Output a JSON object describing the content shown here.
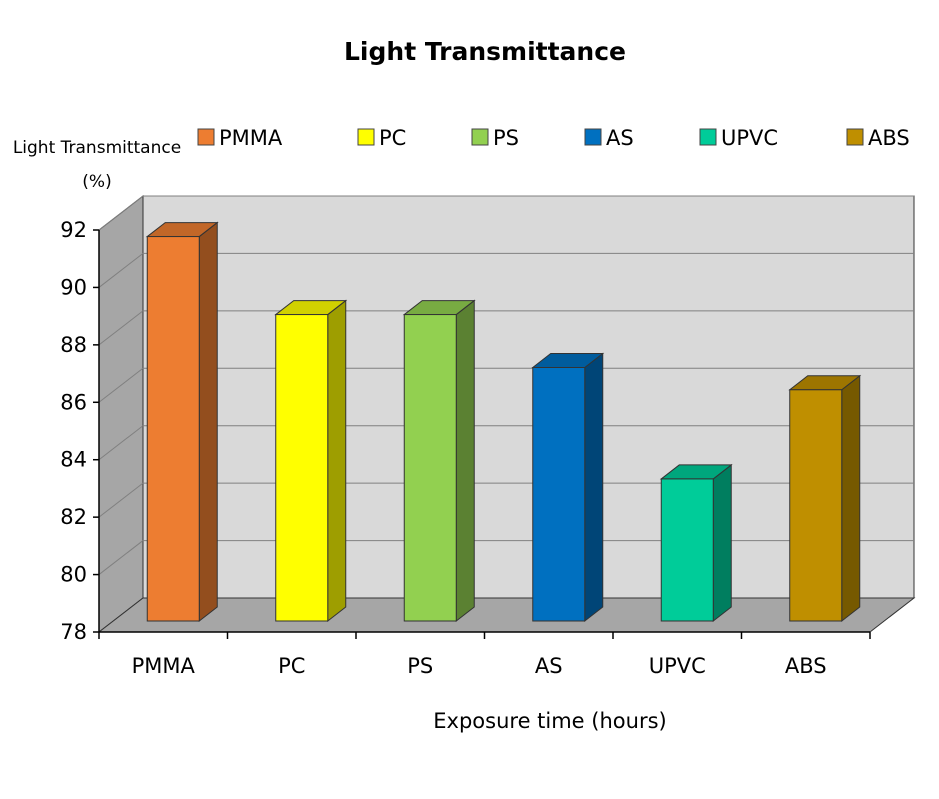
{
  "chart_data": {
    "type": "bar",
    "title": "Light Transmittance",
    "ylabel_line1": "Light Transmittance",
    "ylabel_line2": "(%)",
    "xlabel": "Exposure time (hours)",
    "categories": [
      "PMMA",
      "PC",
      "PS",
      "AS",
      "UPVC",
      "ABS"
    ],
    "values": [
      91.8,
      89.0,
      89.0,
      87.1,
      83.1,
      86.3
    ],
    "colors": [
      "#ED7D31",
      "#FFFF00",
      "#92D050",
      "#0070C0",
      "#00CC99",
      "#BF8F00"
    ],
    "legend": [
      "PMMA",
      "PC",
      "PS",
      "AS",
      "UPVC",
      "ABS"
    ],
    "legend_position": "top",
    "ylim": [
      78,
      92
    ],
    "yticks": [
      78,
      80,
      82,
      84,
      86,
      88,
      90,
      92
    ],
    "grid": true,
    "style": "3d"
  }
}
